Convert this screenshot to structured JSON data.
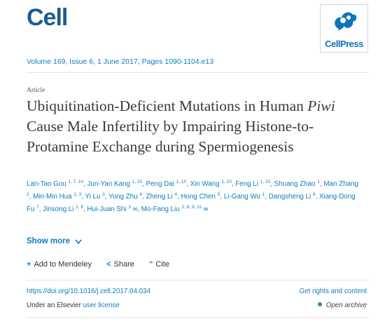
{
  "journal": {
    "name": "Cell",
    "publisher": "CellPress"
  },
  "citation": {
    "volume_line": "Volume 169, Issue 6, 1 June 2017, Pages 1090-1104.e13"
  },
  "article": {
    "type": "Article",
    "title_part1": "Ubiquitination-Deficient Mutations in Human ",
    "title_italic": "Piwi",
    "title_part2": " Cause Male Infertility by Impairing Histone-to-Protamine Exchange during Spermiogenesis"
  },
  "authors": [
    {
      "name": "Lan-Tao Gou",
      "aff": "1, 7, 10"
    },
    {
      "name": "Jun-Yan Kang",
      "aff": "1, 10"
    },
    {
      "name": "Peng Dai",
      "aff": "1, 10"
    },
    {
      "name": "Xin Wang",
      "aff": "1, 10"
    },
    {
      "name": "Feng Li",
      "aff": "1, 10"
    },
    {
      "name": "Shuang Zhao",
      "aff": "1"
    },
    {
      "name": "Man Zhang",
      "aff": "2"
    },
    {
      "name": "Min-Min Hua",
      "aff": "1, 3"
    },
    {
      "name": "Yi Lu",
      "aff": "3"
    },
    {
      "name": "Yong Zhu",
      "aff": "4"
    },
    {
      "name": "Zheng Li",
      "aff": "4"
    },
    {
      "name": "Hong Chen",
      "aff": "5"
    },
    {
      "name": "Li-Gang Wu",
      "aff": "1"
    },
    {
      "name": "Dangsheng Li",
      "aff": "6"
    },
    {
      "name": "Xiang-Dong Fu",
      "aff": "7"
    },
    {
      "name": "Jinsong Li",
      "aff": "2, 8"
    },
    {
      "name": "Hui-Juan Shi",
      "aff": "3",
      "icons": "✉"
    },
    {
      "name": "Mo-Fang Liu",
      "aff": "1, 8, 9, 11",
      "icons": "✉"
    }
  ],
  "actions": {
    "show_more": "Show more",
    "add_mendeley": "Add to Mendeley",
    "share": "Share",
    "cite": "Cite"
  },
  "footer": {
    "doi": "https://doi.org/10.1016/j.cell.2017.04.034",
    "rights": "Get rights and content",
    "license_prefix": "Under an Elsevier ",
    "license_link": "user license",
    "open_access": "Open archive"
  },
  "colors": {
    "link": "#0c7dbb",
    "brand": "#1d5c8f",
    "open_access_dot": "#2e9e42"
  }
}
